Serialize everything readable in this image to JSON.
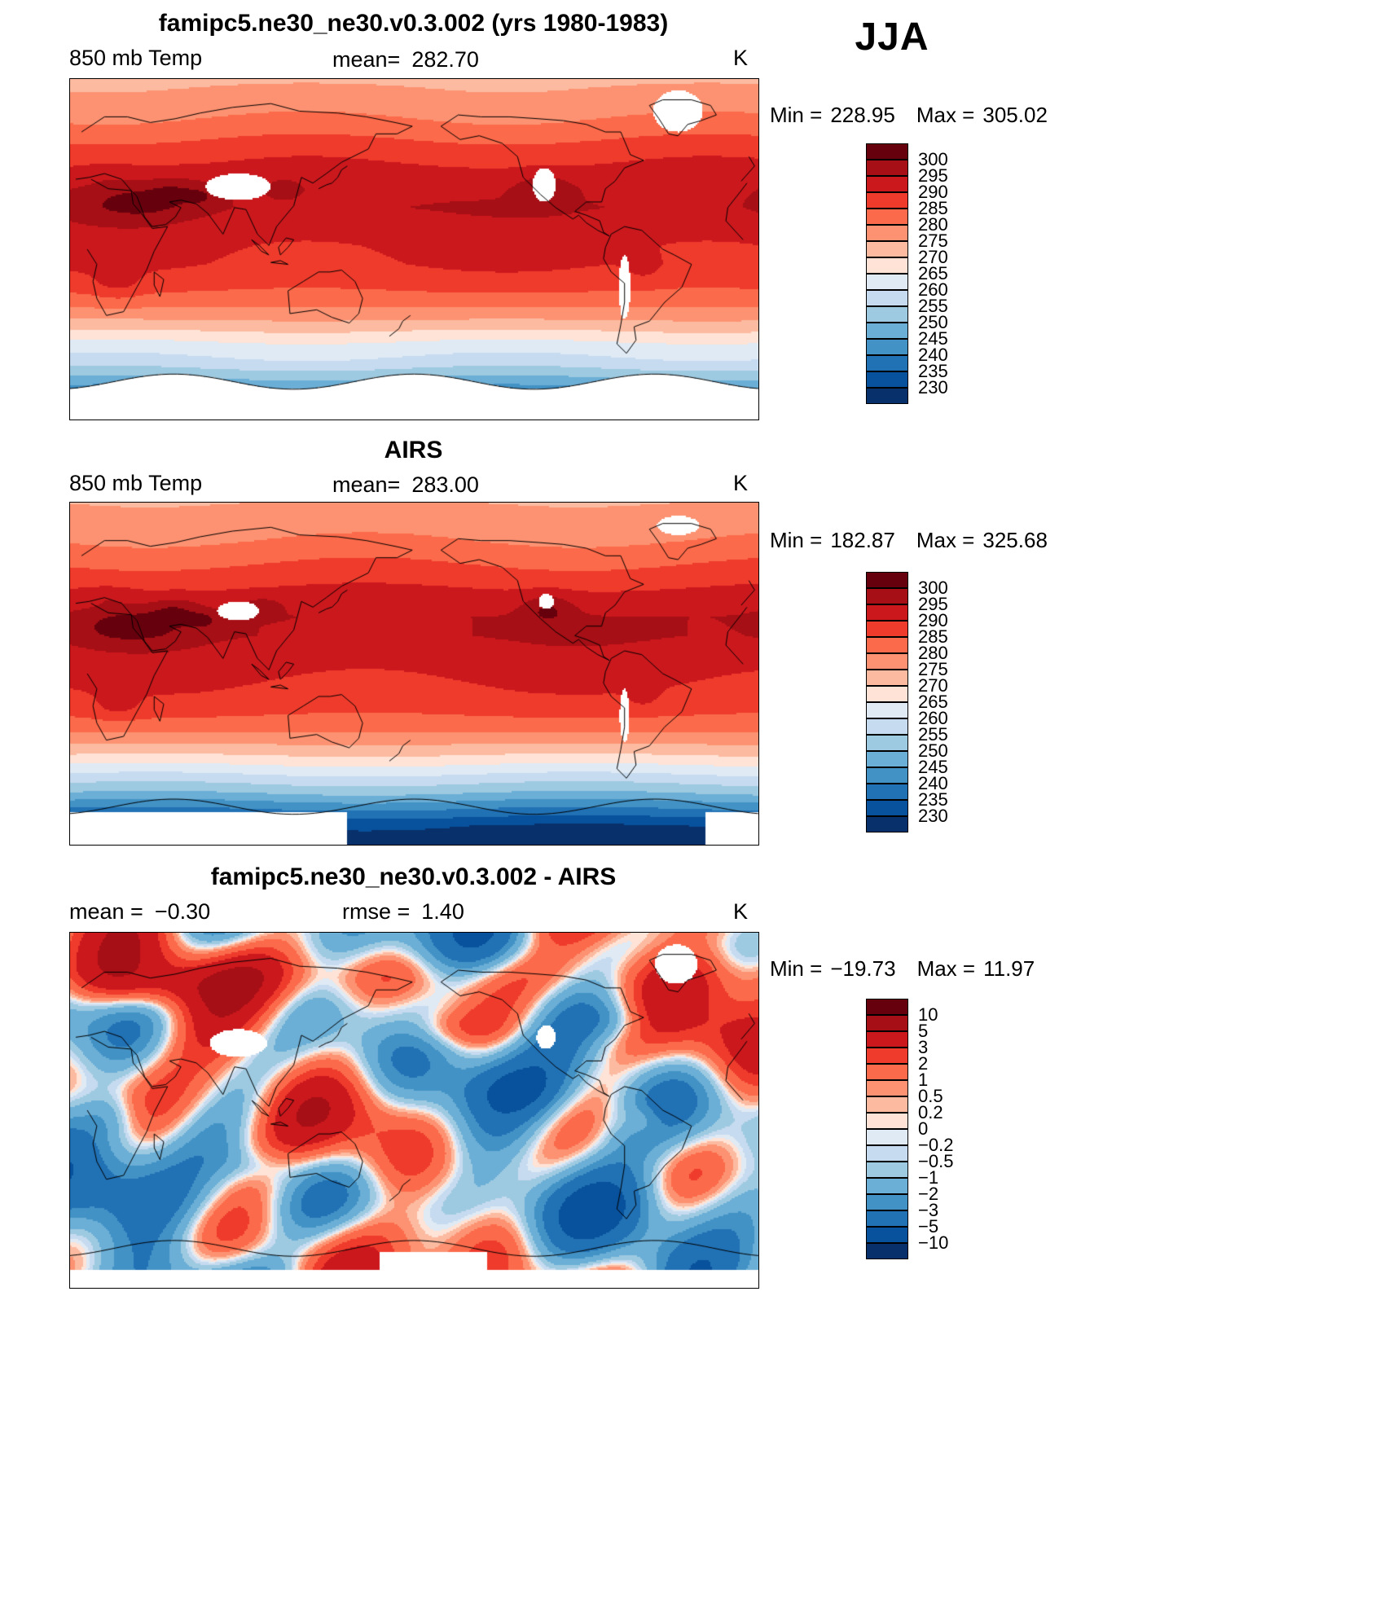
{
  "season_label": "JJA",
  "panels": [
    {
      "title": "famipc5.ne30_ne30.v0.3.002 (yrs 1980-1983)",
      "variable": "850 mb Temp",
      "mean_label": "mean=",
      "mean_value": "282.70",
      "units": "K",
      "min_label": "Min =",
      "min_value": "228.95",
      "max_label": "Max =",
      "max_value": "305.02"
    },
    {
      "title": "AIRS",
      "variable": "850 mb Temp",
      "mean_label": "mean=",
      "mean_value": "283.00",
      "units": "K",
      "min_label": "Min =",
      "min_value": "182.87",
      "max_label": "Max =",
      "max_value": "325.68"
    },
    {
      "title": "famipc5.ne30_ne30.v0.3.002 - AIRS",
      "mean_label": "mean =",
      "mean_value": "−0.30",
      "rmse_label": "rmse =",
      "rmse_value": "1.40",
      "units": "K",
      "min_label": "Min =",
      "min_value": "−19.73",
      "max_label": "Max =",
      "max_value": "11.97"
    }
  ],
  "chart_data": [
    {
      "type": "heatmap",
      "panel": "model",
      "title": "famipc5.ne30_ne30.v0.3.002 (yrs 1980-1983)",
      "variable": "850 mb Temp",
      "season": "JJA",
      "units": "K",
      "mean": 282.7,
      "min": 228.95,
      "max": 305.02,
      "levels": [
        300,
        295,
        290,
        285,
        280,
        275,
        270,
        265,
        260,
        255,
        250,
        245,
        240,
        235,
        230
      ],
      "tick_labels": [
        "300",
        "295",
        "290",
        "285",
        "280",
        "275",
        "270",
        "265",
        "260",
        "255",
        "250",
        "245",
        "240",
        "235",
        "230"
      ],
      "palette": [
        "#67000d",
        "#a50f15",
        "#cb181d",
        "#ef3b2c",
        "#fb6a4a",
        "#fc9272",
        "#fcbba1",
        "#fee3d6",
        "#dfeaf4",
        "#c6dbef",
        "#9ecae1",
        "#6baed6",
        "#4292c6",
        "#2171b5",
        "#08519c",
        "#08306b"
      ]
    },
    {
      "type": "heatmap",
      "panel": "observations",
      "title": "AIRS",
      "variable": "850 mb Temp",
      "season": "JJA",
      "units": "K",
      "mean": 283.0,
      "min": 182.87,
      "max": 325.68,
      "levels": [
        300,
        295,
        290,
        285,
        280,
        275,
        270,
        265,
        260,
        255,
        250,
        245,
        240,
        235,
        230
      ],
      "tick_labels": [
        "300",
        "295",
        "290",
        "285",
        "280",
        "275",
        "270",
        "265",
        "260",
        "255",
        "250",
        "245",
        "240",
        "235",
        "230"
      ],
      "palette": [
        "#67000d",
        "#a50f15",
        "#cb181d",
        "#ef3b2c",
        "#fb6a4a",
        "#fc9272",
        "#fcbba1",
        "#fee3d6",
        "#dfeaf4",
        "#c6dbef",
        "#9ecae1",
        "#6baed6",
        "#4292c6",
        "#2171b5",
        "#08519c",
        "#08306b"
      ]
    },
    {
      "type": "heatmap",
      "panel": "difference",
      "title": "famipc5.ne30_ne30.v0.3.002 - AIRS",
      "season": "JJA",
      "units": "K",
      "mean": -0.3,
      "rmse": 1.4,
      "min": -19.73,
      "max": 11.97,
      "levels": [
        10,
        5,
        3,
        2,
        1,
        0.5,
        0.2,
        0,
        -0.2,
        -0.5,
        -1,
        -2,
        -3,
        -5,
        -10
      ],
      "tick_labels": [
        "10",
        "5",
        "3",
        "2",
        "1",
        "0.5",
        "0.2",
        "0",
        "−0.2",
        "−0.5",
        "−1",
        "−2",
        "−3",
        "−5",
        "−10"
      ],
      "palette": [
        "#67000d",
        "#a50f15",
        "#cb181d",
        "#ef3b2c",
        "#fb6a4a",
        "#fc9272",
        "#fcbba1",
        "#fee3d6",
        "#dfeaf4",
        "#c6dbef",
        "#9ecae1",
        "#6baed6",
        "#4292c6",
        "#2171b5",
        "#08519c",
        "#08306b"
      ]
    }
  ]
}
